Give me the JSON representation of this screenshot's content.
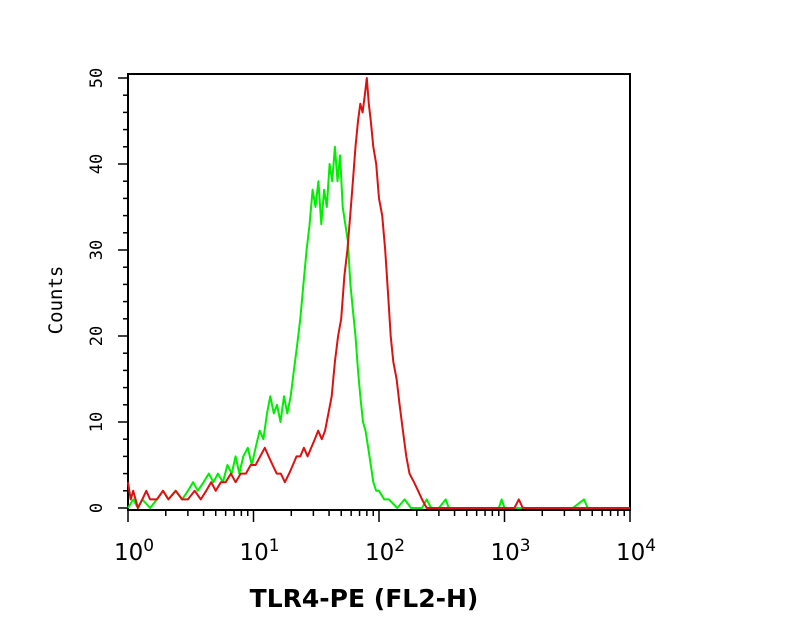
{
  "chart_data": {
    "type": "line",
    "xlabel": "TLR4-PE (FL2-H)",
    "ylabel": "Counts",
    "xscale": "log",
    "xlim": [
      1,
      10000
    ],
    "ylim": [
      0,
      50
    ],
    "xticks": [
      {
        "base": "10",
        "exp": "0",
        "value": 1
      },
      {
        "base": "10",
        "exp": "1",
        "value": 10
      },
      {
        "base": "10",
        "exp": "2",
        "value": 100
      },
      {
        "base": "10",
        "exp": "3",
        "value": 1000
      },
      {
        "base": "10",
        "exp": "4",
        "value": 10000
      }
    ],
    "yticks": [
      0,
      10,
      20,
      30,
      40,
      50
    ],
    "grid": false,
    "series": [
      {
        "color": "#00ee00",
        "points": [
          [
            1.0,
            0
          ],
          [
            1.1,
            1
          ],
          [
            1.2,
            0
          ],
          [
            1.3,
            1
          ],
          [
            1.5,
            0
          ],
          [
            1.7,
            1
          ],
          [
            1.9,
            2
          ],
          [
            2.1,
            1
          ],
          [
            2.4,
            2
          ],
          [
            2.7,
            1
          ],
          [
            3.0,
            2
          ],
          [
            3.3,
            3
          ],
          [
            3.6,
            2
          ],
          [
            4.0,
            3
          ],
          [
            4.4,
            4
          ],
          [
            4.8,
            3
          ],
          [
            5.2,
            4
          ],
          [
            5.7,
            3
          ],
          [
            6.2,
            5
          ],
          [
            6.7,
            4
          ],
          [
            7.2,
            6
          ],
          [
            7.7,
            4
          ],
          [
            8.3,
            6
          ],
          [
            9.0,
            7
          ],
          [
            9.7,
            5
          ],
          [
            10.4,
            7
          ],
          [
            11.2,
            9
          ],
          [
            12.0,
            8
          ],
          [
            12.8,
            11
          ],
          [
            13.6,
            13
          ],
          [
            14.5,
            11
          ],
          [
            15.4,
            12
          ],
          [
            16.4,
            10
          ],
          [
            17.5,
            13
          ],
          [
            18.6,
            11
          ],
          [
            19.8,
            13
          ],
          [
            21.0,
            16
          ],
          [
            22.3,
            19
          ],
          [
            23.6,
            22
          ],
          [
            25.0,
            26
          ],
          [
            26.5,
            30
          ],
          [
            28.0,
            33
          ],
          [
            29.6,
            37
          ],
          [
            31.2,
            35
          ],
          [
            32.9,
            38
          ],
          [
            34.7,
            33
          ],
          [
            36.5,
            37
          ],
          [
            38.4,
            35
          ],
          [
            40.4,
            40
          ],
          [
            42.4,
            38
          ],
          [
            44.5,
            42
          ],
          [
            46.7,
            38
          ],
          [
            49.0,
            41
          ],
          [
            51.4,
            35
          ],
          [
            53.9,
            33
          ],
          [
            56.5,
            31
          ],
          [
            59.2,
            26
          ],
          [
            62.0,
            23
          ],
          [
            65.0,
            20
          ],
          [
            68.0,
            16
          ],
          [
            71.0,
            13
          ],
          [
            74.5,
            10
          ],
          [
            78.0,
            9
          ],
          [
            82.0,
            7
          ],
          [
            86.0,
            5
          ],
          [
            90.0,
            3
          ],
          [
            95.0,
            2
          ],
          [
            100.0,
            2
          ],
          [
            110.0,
            1
          ],
          [
            120.0,
            1
          ],
          [
            140.0,
            0
          ],
          [
            160.0,
            1
          ],
          [
            180.0,
            0
          ],
          [
            220.0,
            0
          ],
          [
            240.0,
            1
          ],
          [
            260.0,
            0
          ],
          [
            300.0,
            0
          ],
          [
            340.0,
            1
          ],
          [
            360.0,
            0
          ],
          [
            500.0,
            0
          ],
          [
            600.0,
            0
          ],
          [
            900.0,
            0
          ],
          [
            950.0,
            1
          ],
          [
            1000.0,
            0
          ],
          [
            2000.0,
            0
          ],
          [
            3500.0,
            0
          ],
          [
            4300.0,
            1
          ],
          [
            4600.0,
            0
          ],
          [
            10000.0,
            0
          ]
        ]
      },
      {
        "color": "#dd1111",
        "points": [
          [
            1.0,
            3
          ],
          [
            1.05,
            1
          ],
          [
            1.1,
            2
          ],
          [
            1.2,
            0
          ],
          [
            1.3,
            1
          ],
          [
            1.4,
            2
          ],
          [
            1.5,
            1
          ],
          [
            1.7,
            1
          ],
          [
            1.9,
            2
          ],
          [
            2.1,
            1
          ],
          [
            2.4,
            2
          ],
          [
            2.7,
            1
          ],
          [
            3.0,
            1
          ],
          [
            3.4,
            2
          ],
          [
            3.8,
            1
          ],
          [
            4.2,
            2
          ],
          [
            4.6,
            3
          ],
          [
            5.0,
            2
          ],
          [
            5.5,
            3
          ],
          [
            6.0,
            3
          ],
          [
            6.6,
            4
          ],
          [
            7.2,
            3
          ],
          [
            7.9,
            4
          ],
          [
            8.7,
            4
          ],
          [
            9.5,
            5
          ],
          [
            10.4,
            5
          ],
          [
            11.3,
            6
          ],
          [
            12.3,
            7
          ],
          [
            13.2,
            6
          ],
          [
            14.2,
            5
          ],
          [
            15.3,
            4
          ],
          [
            16.5,
            4
          ],
          [
            17.8,
            3
          ],
          [
            19.2,
            4
          ],
          [
            20.6,
            5
          ],
          [
            22.0,
            6
          ],
          [
            23.6,
            6
          ],
          [
            25.2,
            7
          ],
          [
            27.0,
            6
          ],
          [
            28.8,
            7
          ],
          [
            30.8,
            8
          ],
          [
            32.8,
            9
          ],
          [
            35.0,
            8
          ],
          [
            37.2,
            9
          ],
          [
            39.5,
            11
          ],
          [
            42.0,
            13
          ],
          [
            44.5,
            17
          ],
          [
            47.2,
            20
          ],
          [
            50.0,
            22
          ],
          [
            53.0,
            27
          ],
          [
            56.0,
            30
          ],
          [
            59.0,
            34
          ],
          [
            62.0,
            38
          ],
          [
            65.0,
            42
          ],
          [
            68.0,
            45
          ],
          [
            71.0,
            47
          ],
          [
            74.0,
            46
          ],
          [
            77.0,
            48
          ],
          [
            80.0,
            50
          ],
          [
            83.0,
            47
          ],
          [
            86.0,
            45
          ],
          [
            90.0,
            42
          ],
          [
            95.0,
            40
          ],
          [
            100.0,
            36
          ],
          [
            106.0,
            34
          ],
          [
            112.0,
            30
          ],
          [
            118.0,
            25
          ],
          [
            124.0,
            20
          ],
          [
            130.0,
            17
          ],
          [
            138.0,
            15
          ],
          [
            146.0,
            12
          ],
          [
            155.0,
            9
          ],
          [
            165.0,
            6
          ],
          [
            175.0,
            4
          ],
          [
            190.0,
            3
          ],
          [
            205.0,
            2
          ],
          [
            220.0,
            1
          ],
          [
            240.0,
            0
          ],
          [
            300.0,
            0
          ],
          [
            1200.0,
            0
          ],
          [
            1300.0,
            1
          ],
          [
            1400.0,
            0
          ],
          [
            10000.0,
            0
          ]
        ]
      }
    ]
  }
}
